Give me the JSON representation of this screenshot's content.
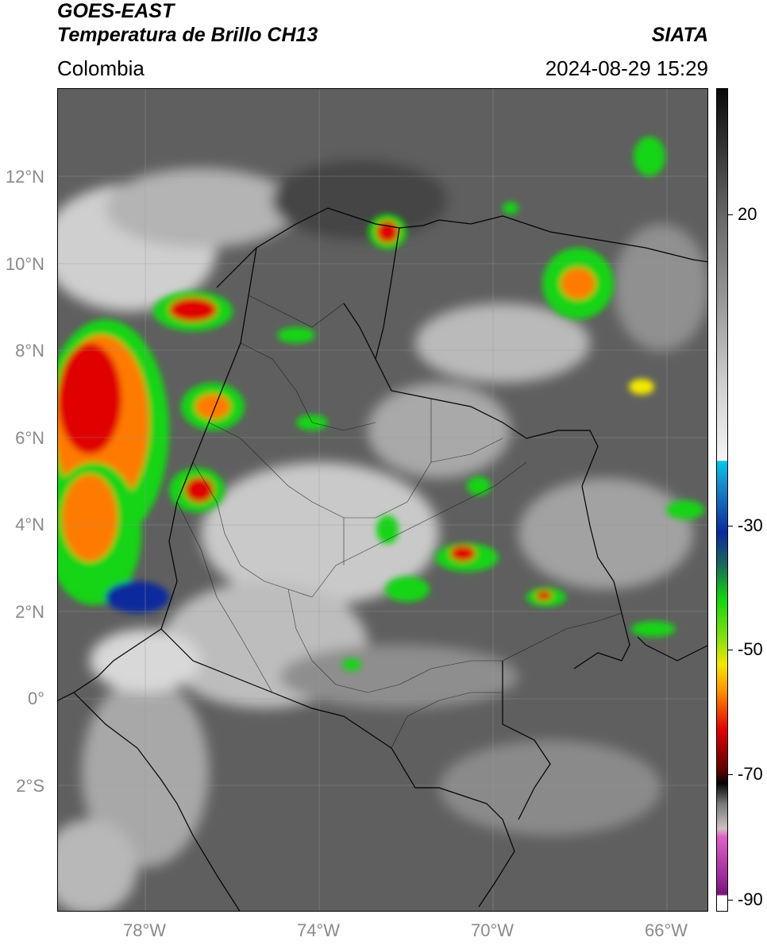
{
  "header": {
    "title_line1": "GOES-EAST",
    "title_line2": "Temperatura de Brillo CH13",
    "brand": "SIATA",
    "region": "Colombia",
    "datetime": "2024-08-29 15:29"
  },
  "map": {
    "lat_ticks": [
      {
        "label": "12°N",
        "lat": 12
      },
      {
        "label": "10°N",
        "lat": 10
      },
      {
        "label": "8°N",
        "lat": 8
      },
      {
        "label": "6°N",
        "lat": 6
      },
      {
        "label": "4°N",
        "lat": 4
      },
      {
        "label": "2°N",
        "lat": 2
      },
      {
        "label": "0°",
        "lat": 0
      },
      {
        "label": "2°S",
        "lat": -2
      }
    ],
    "lon_ticks": [
      {
        "label": "78°W",
        "lon": -78
      },
      {
        "label": "74°W",
        "lon": -74
      },
      {
        "label": "70°W",
        "lon": -70
      },
      {
        "label": "66°W",
        "lon": -66
      }
    ],
    "extent": {
      "lon_min": -80,
      "lon_max": -65,
      "lat_min": -4.9,
      "lat_max": 14
    }
  },
  "colorbar": {
    "ticks": [
      {
        "label": "20",
        "value": 20
      },
      {
        "label": "-30",
        "value": -30
      },
      {
        "label": "-50",
        "value": -50
      },
      {
        "label": "-70",
        "value": -70
      },
      {
        "label": "-90",
        "value": -90
      }
    ],
    "colors": {
      "white": "#f4f4f4",
      "cyan": "#00c8e8",
      "blue": "#0a2a9c",
      "green": "#12d412",
      "yellow": "#f2e800",
      "orange": "#ff7a00",
      "red": "#e00000",
      "darkred": "#5a0000",
      "black": "#050505",
      "pink": "#e060c8",
      "purple": "#7a1478"
    }
  }
}
